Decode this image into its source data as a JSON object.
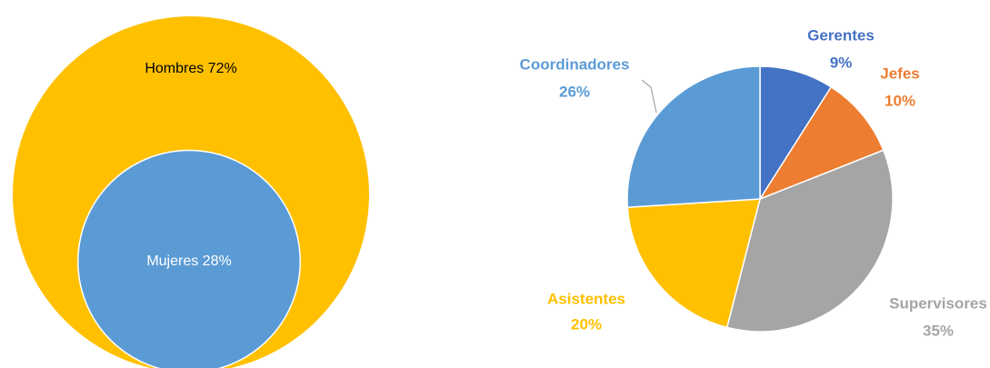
{
  "chart_data": [
    {
      "type": "circles",
      "categories": [
        "Hombres",
        "Mujeres"
      ],
      "values": [
        72,
        28
      ],
      "value_labels": [
        "Hombres 72%",
        "Mujeres 28%"
      ],
      "colors": [
        "#ffc000",
        "#5b9bd5"
      ]
    },
    {
      "type": "pie",
      "categories": [
        "Gerentes",
        "Jefes",
        "Supervisores",
        "Asistentes",
        "Coordinadores"
      ],
      "values": [
        9,
        10,
        35,
        20,
        26
      ],
      "value_labels": [
        "9%",
        "10%",
        "35%",
        "20%",
        "26%"
      ],
      "colors": [
        "#4472c4",
        "#ed7d31",
        "#a5a5a5",
        "#ffc000",
        "#5b9bd5"
      ]
    }
  ]
}
